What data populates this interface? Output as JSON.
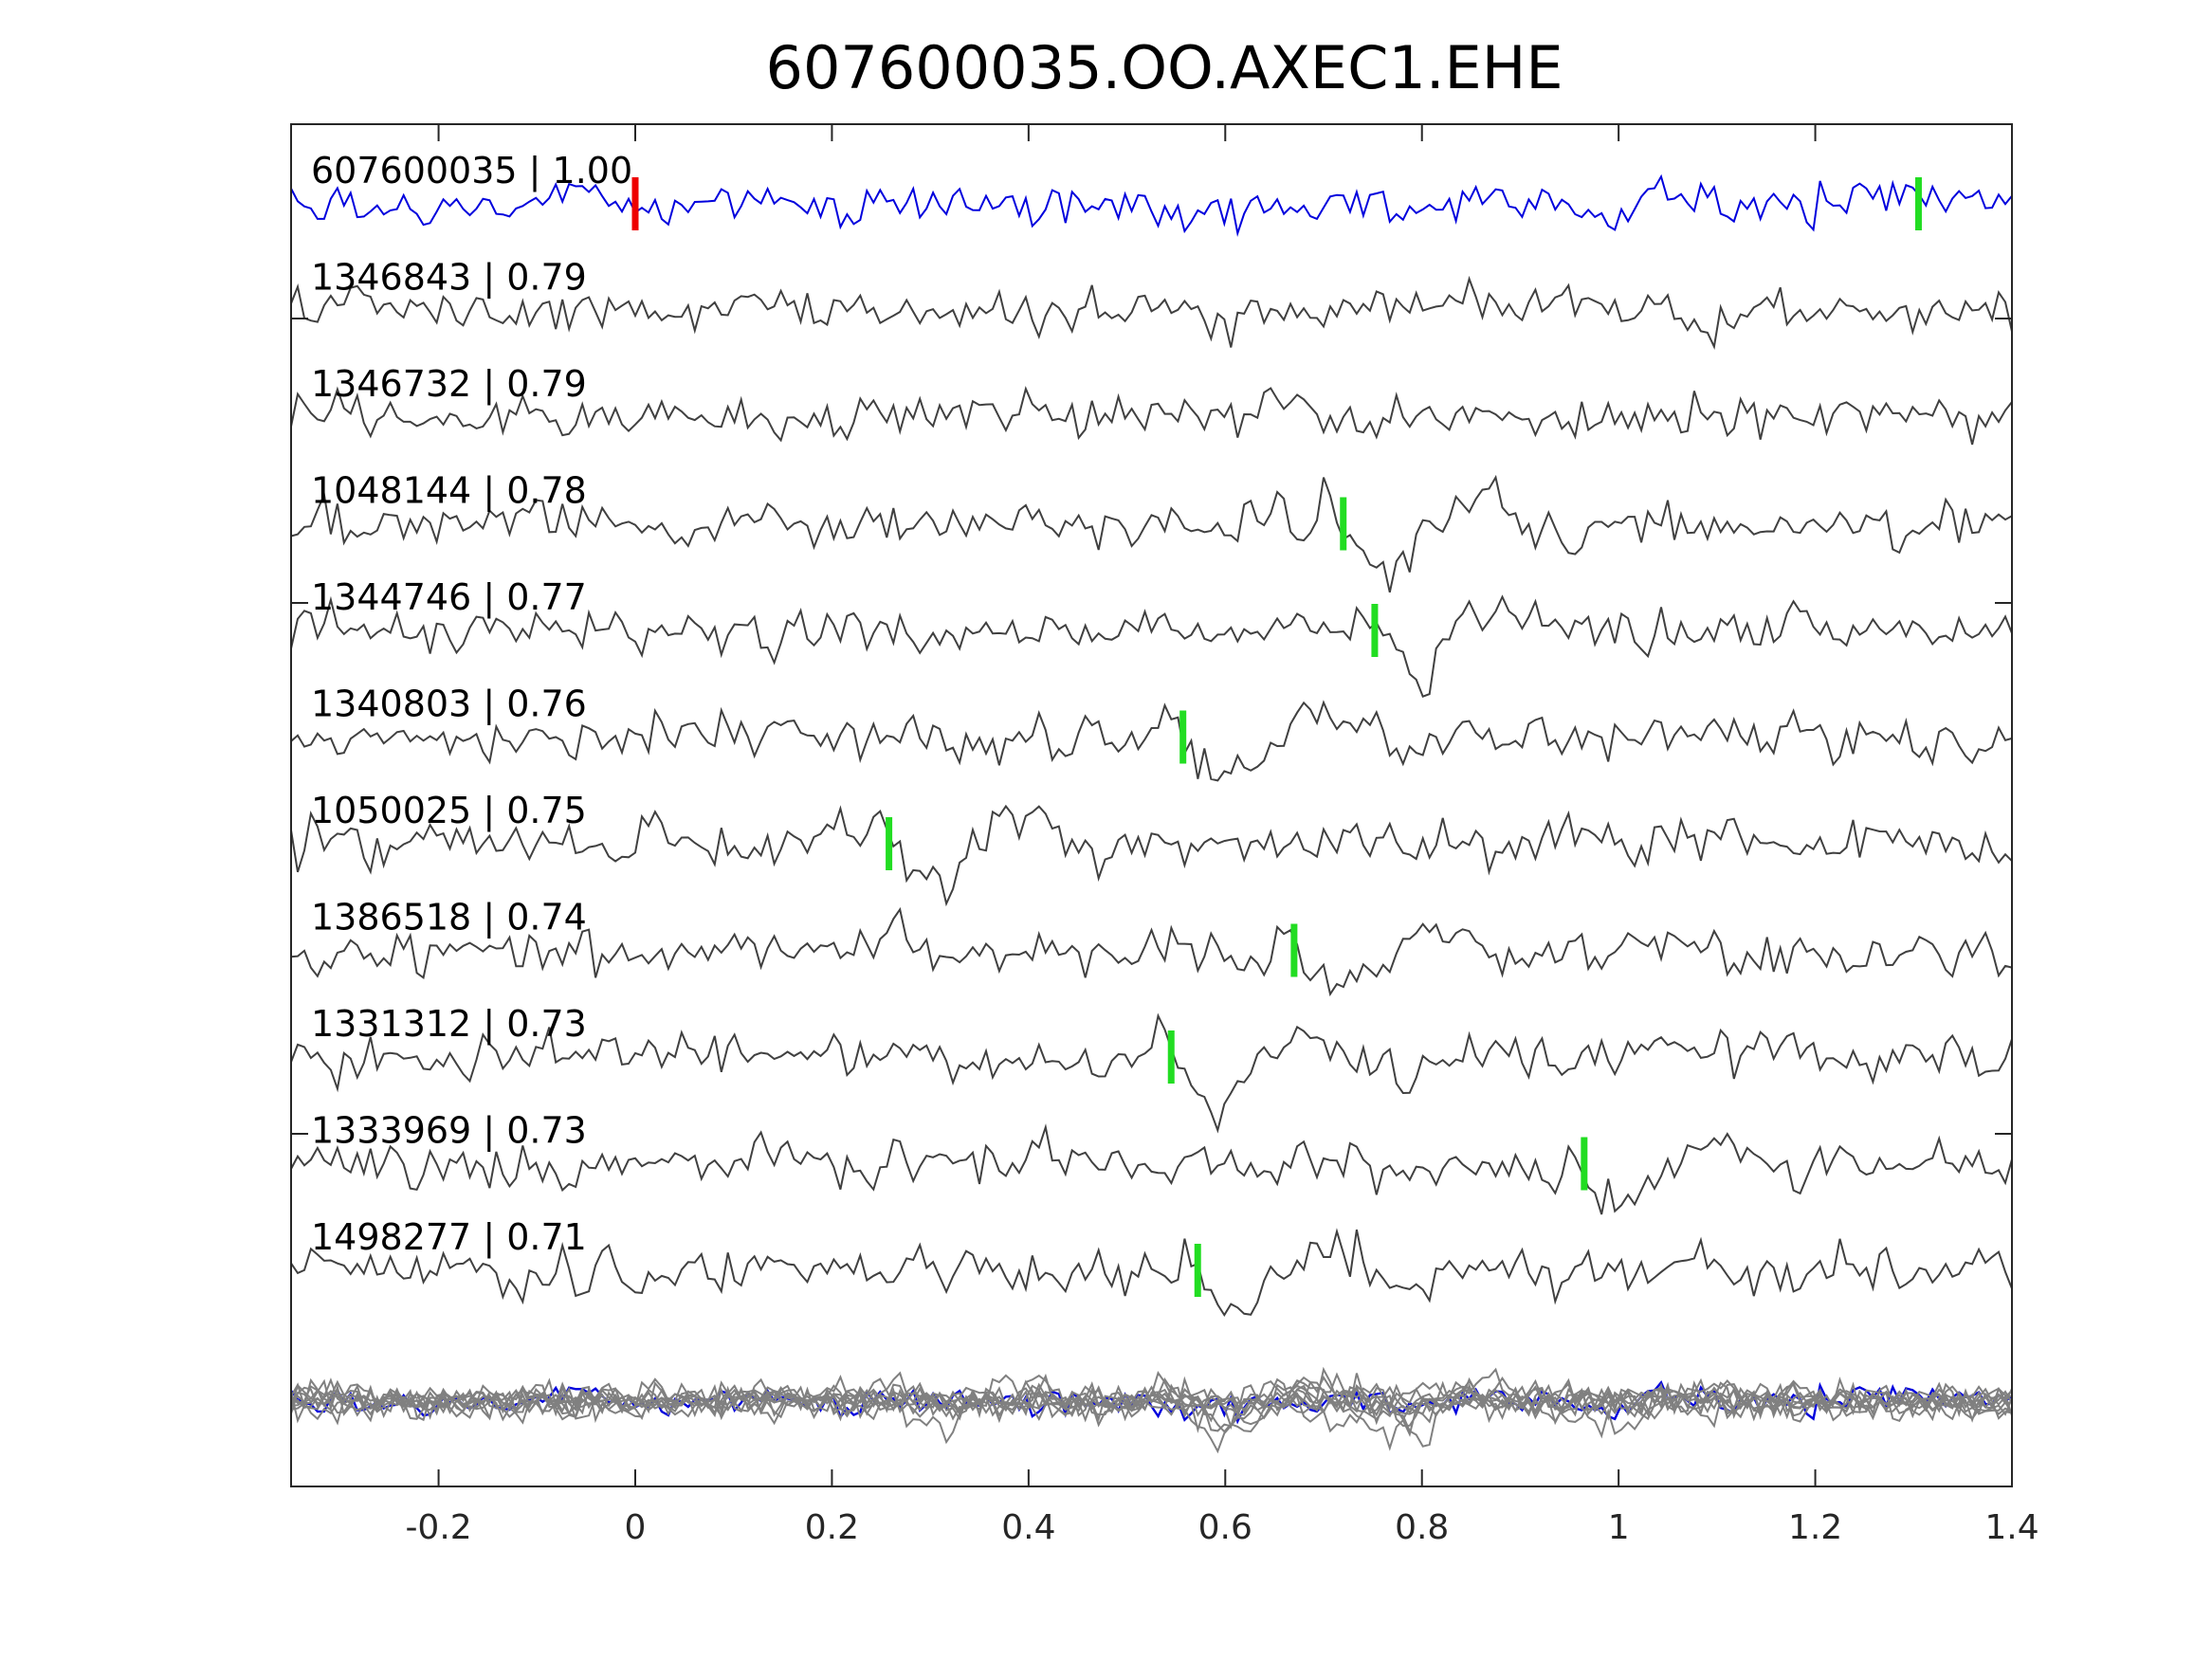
{
  "chart_data": {
    "type": "line",
    "title": "607600035.OO.AXEC1.EHE",
    "xlabel": "",
    "ylabel": "",
    "xlim": [
      -0.35,
      1.4
    ],
    "xticks": [
      -0.2,
      0,
      0.2,
      0.4,
      0.6,
      0.8,
      1,
      1.2,
      1.4
    ],
    "xtick_labels": [
      "-0.2",
      "0",
      "0.2",
      "0.4",
      "0.6",
      "0.8",
      "1",
      "1.2",
      "1.4"
    ],
    "grid": false,
    "colors": {
      "reference": "#0000dd",
      "trace": "#404040",
      "overlay": "#808080",
      "pick_reference": "#ee0000",
      "pick": "#22dd22",
      "axes": "#262626"
    },
    "series": [
      {
        "id": "607600035",
        "cc": "1.00",
        "label": "607600035 | 1.00",
        "reference": true,
        "picks": [
          {
            "t": 0.0,
            "color": "red"
          },
          {
            "t": 1.305,
            "color": "green"
          }
        ]
      },
      {
        "id": "1346843",
        "cc": "0.79",
        "label": "1346843 | 0.79",
        "picks": []
      },
      {
        "id": "1346732",
        "cc": "0.79",
        "label": "1346732 | 0.79",
        "picks": []
      },
      {
        "id": "1048144",
        "cc": "0.78",
        "label": "1048144 | 0.78",
        "picks": [
          {
            "t": 0.72,
            "color": "green"
          }
        ]
      },
      {
        "id": "1344746",
        "cc": "0.77",
        "label": "1344746 | 0.77",
        "picks": [
          {
            "t": 0.752,
            "color": "green"
          }
        ]
      },
      {
        "id": "1340803",
        "cc": "0.76",
        "label": "1340803 | 0.76",
        "picks": [
          {
            "t": 0.557,
            "color": "green"
          }
        ]
      },
      {
        "id": "1050025",
        "cc": "0.75",
        "label": "1050025 | 0.75",
        "picks": [
          {
            "t": 0.258,
            "color": "green"
          }
        ]
      },
      {
        "id": "1386518",
        "cc": "0.74",
        "label": "1386518 | 0.74",
        "picks": [
          {
            "t": 0.67,
            "color": "green"
          }
        ]
      },
      {
        "id": "1331312",
        "cc": "0.73",
        "label": "1331312 | 0.73",
        "picks": [
          {
            "t": 0.545,
            "color": "green"
          }
        ]
      },
      {
        "id": "1333969",
        "cc": "0.73",
        "label": "1333969 | 0.73",
        "picks": [
          {
            "t": 0.965,
            "color": "green"
          }
        ]
      },
      {
        "id": "1498277",
        "cc": "0.71",
        "label": "1498277 | 0.71",
        "picks": [
          {
            "t": 0.572,
            "color": "green"
          }
        ]
      }
    ]
  }
}
